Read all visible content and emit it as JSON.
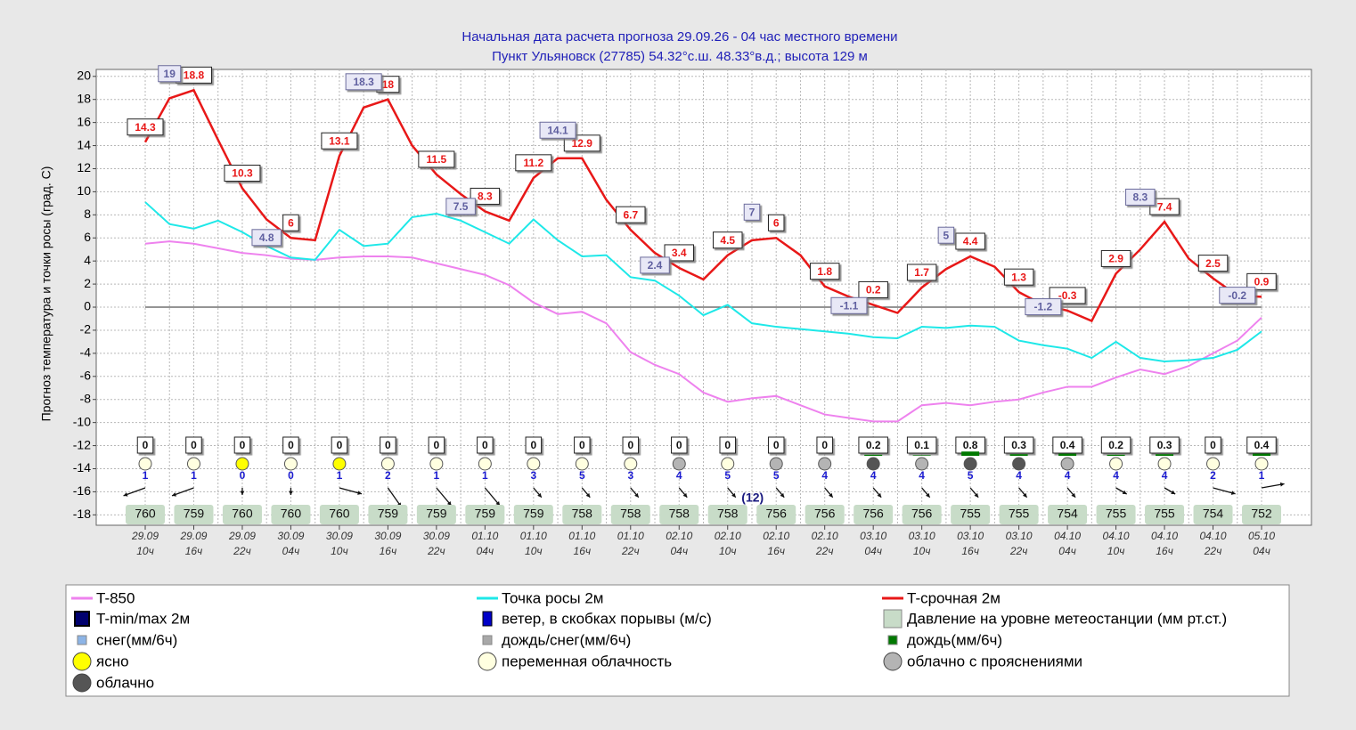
{
  "chart_data": {
    "type": "line",
    "title": "Начальная дата расчета прогноза 29.09.26  -  04 час местного времени",
    "subtitle": "Пункт  Ульяновск (27785)   54.32°с.ш.   48.33°в.д.; высота 129 м",
    "y_label": "Прогноз температура и точки росы (град. С)",
    "ylim": [
      -18.9,
      20.6
    ],
    "yticks": [
      20,
      18,
      16,
      14,
      12,
      10,
      8,
      6,
      4,
      2,
      0,
      -2,
      -4,
      -6,
      -8,
      -10,
      -12,
      -14,
      -16,
      -18
    ],
    "grid": true,
    "categories": [
      {
        "date": "29.09",
        "hour": "10ч"
      },
      null,
      {
        "date": "29.09",
        "hour": "16ч"
      },
      null,
      {
        "date": "29.09",
        "hour": "22ч"
      },
      null,
      {
        "date": "30.09",
        "hour": "04ч"
      },
      null,
      {
        "date": "30.09",
        "hour": "10ч"
      },
      null,
      {
        "date": "30.09",
        "hour": "16ч"
      },
      null,
      {
        "date": "30.09",
        "hour": "22ч"
      },
      null,
      {
        "date": "01.10",
        "hour": "04ч"
      },
      null,
      {
        "date": "01.10",
        "hour": "10ч"
      },
      null,
      {
        "date": "01.10",
        "hour": "16ч"
      },
      null,
      {
        "date": "01.10",
        "hour": "22ч"
      },
      null,
      {
        "date": "02.10",
        "hour": "04ч"
      },
      null,
      {
        "date": "02.10",
        "hour": "10ч"
      },
      null,
      {
        "date": "02.10",
        "hour": "16ч"
      },
      null,
      {
        "date": "02.10",
        "hour": "22ч"
      },
      null,
      {
        "date": "03.10",
        "hour": "04ч"
      },
      null,
      {
        "date": "03.10",
        "hour": "10ч"
      },
      null,
      {
        "date": "03.10",
        "hour": "16ч"
      },
      null,
      {
        "date": "03.10",
        "hour": "22ч"
      },
      null,
      {
        "date": "04.10",
        "hour": "04ч"
      },
      null,
      {
        "date": "04.10",
        "hour": "10ч"
      },
      null,
      {
        "date": "04.10",
        "hour": "16ч"
      },
      null,
      {
        "date": "04.10",
        "hour": "22ч"
      },
      null,
      {
        "date": "05.10",
        "hour": "04ч"
      }
    ],
    "series": [
      {
        "name": "T-850",
        "color": "#ee82ee",
        "marker": "line",
        "values": [
          5.5,
          5.7,
          5.5,
          5.1,
          4.7,
          4.5,
          4.2,
          4.1,
          4.3,
          4.4,
          4.4,
          4.3,
          3.8,
          3.3,
          2.8,
          1.9,
          0.4,
          -0.6,
          -0.4,
          -1.4,
          -3.9,
          -5,
          -5.8,
          -7.4,
          -8.2,
          -7.9,
          -7.7,
          -8.5,
          -9.3,
          -9.6,
          -9.9,
          -9.9,
          -8.5,
          -8.3,
          -8.5,
          -8.2,
          -8,
          -7.4,
          -6.9,
          -6.9,
          -6.1,
          -5.4,
          -5.8,
          -5.1,
          -4,
          -2.9,
          -0.9
        ]
      },
      {
        "name": "Точка росы 2м",
        "color": "#1ee8e8",
        "marker": "line",
        "values": [
          9.1,
          7.2,
          6.8,
          7.5,
          6.5,
          5.3,
          4.3,
          4.1,
          6.7,
          5.3,
          5.5,
          7.8,
          8.1,
          7.5,
          6.5,
          5.5,
          7.6,
          5.8,
          4.4,
          4.5,
          2.6,
          2.3,
          1,
          -0.7,
          0.2,
          -1.4,
          -1.7,
          -1.9,
          -2.1,
          -2.3,
          -2.6,
          -2.7,
          -1.7,
          -1.8,
          -1.6,
          -1.7,
          -2.9,
          -3.3,
          -3.6,
          -4.4,
          -3,
          -4.4,
          -4.7,
          -4.6,
          -4.4,
          -3.7,
          -2.1
        ]
      },
      {
        "name": "T-срочная 2м",
        "color": "#e81818",
        "marker": "line",
        "label_every": 2,
        "values": [
          14.3,
          18.1,
          18.8,
          14.5,
          10.3,
          7.6,
          6,
          5.8,
          13.1,
          17.3,
          18,
          14,
          11.5,
          9.8,
          8.3,
          7.5,
          11.2,
          12.9,
          12.9,
          9.3,
          6.7,
          4.7,
          3.4,
          2.4,
          4.5,
          5.8,
          6,
          4.5,
          1.8,
          0.9,
          0.2,
          -0.5,
          1.7,
          3.3,
          4.4,
          3.5,
          1.3,
          0.2,
          -0.3,
          -1.2,
          2.9,
          5,
          7.4,
          4.2,
          2.5,
          1.0,
          0.9
        ]
      },
      {
        "name": "T-min/max 2м",
        "color": "#00006e",
        "marker": "label",
        "values": [
          null,
          19,
          null,
          null,
          null,
          4.8,
          null,
          null,
          null,
          18.3,
          null,
          null,
          null,
          7.5,
          null,
          null,
          null,
          14.1,
          null,
          null,
          null,
          2.4,
          null,
          null,
          null,
          7,
          null,
          null,
          null,
          -1.1,
          null,
          null,
          null,
          5,
          null,
          null,
          null,
          -1.2,
          null,
          null,
          null,
          8.3,
          null,
          null,
          null,
          -0.2,
          null
        ]
      }
    ],
    "legend_items": [
      {
        "name": "ветер, в скобках порывы (м/с)",
        "color": "#0000c8",
        "shape": "bar"
      },
      {
        "name": "Давление на уровне метеостанции (мм рт.ст.)",
        "color": "#c8dcc8",
        "shape": "square"
      },
      {
        "name": "снег(мм/6ч)",
        "color": "#8cb4e6",
        "shape": "small-square"
      },
      {
        "name": "дождь/снег(мм/6ч)",
        "color": "#a8a8a8",
        "shape": "small-square"
      },
      {
        "name": "дождь(мм/6ч)",
        "color": "#007800",
        "shape": "small-square"
      },
      {
        "name": "ясно",
        "color": "#ffff00",
        "shape": "circle"
      },
      {
        "name": "переменная облачность",
        "color": "#ffffe0",
        "shape": "circle"
      },
      {
        "name": "облачно с прояснениями",
        "color": "#b4b4b4",
        "shape": "circle"
      },
      {
        "name": "облачно",
        "color": "#555555",
        "shape": "circle"
      }
    ],
    "precipitation": [
      0,
      0,
      0,
      0,
      0,
      0,
      0,
      0,
      0,
      0,
      0,
      0,
      0,
      0,
      0,
      0.2,
      0.1,
      0.8,
      0.3,
      0.4,
      0.2,
      0.3,
      0,
      0.4
    ],
    "clouds": [
      "переменная облачность",
      "переменная облачность",
      "ясно",
      "переменная облачность",
      "ясно",
      "переменная облачность",
      "переменная облачность",
      "переменная облачность",
      "переменная облачность",
      "переменная облачность",
      "переменная облачность",
      "облачно с прояснениями",
      "переменная облачность",
      "облачно с прояснениями",
      "облачно с прояснениями",
      "облачно",
      "облачно с прояснениями",
      "облачно",
      "облачно",
      "облачно с прояснениями",
      "переменная облачность",
      "переменная облачность",
      "переменная облачность",
      "переменная облачность"
    ],
    "wind_speed": [
      1,
      1,
      0,
      0,
      1,
      2,
      1,
      1,
      3,
      5,
      3,
      4,
      5,
      5,
      4,
      4,
      4,
      5,
      4,
      4,
      4,
      4,
      2,
      1
    ],
    "wind_direction": [
      70,
      70,
      0,
      0,
      285,
      325,
      320,
      320,
      320,
      320,
      320,
      320,
      320,
      320,
      320,
      320,
      320,
      320,
      320,
      320,
      300,
      300,
      285,
      260
    ],
    "wind_gusts": {
      "values": [
        null,
        null,
        null,
        null,
        null,
        null,
        null,
        null,
        null,
        null,
        null,
        null,
        12,
        null,
        null,
        null,
        null,
        null,
        null,
        null,
        null,
        null,
        null,
        null
      ],
      "value_labels": [
        null,
        null,
        null,
        null,
        null,
        null,
        null,
        null,
        null,
        null,
        null,
        null,
        "(12)",
        null,
        null,
        null,
        null,
        null,
        null,
        null,
        null,
        null,
        null,
        null
      ]
    },
    "pressure": [
      760,
      759,
      760,
      760,
      760,
      759,
      759,
      759,
      759,
      758,
      758,
      758,
      758,
      756,
      756,
      756,
      756,
      755,
      755,
      754,
      755,
      755,
      754,
      752
    ]
  }
}
